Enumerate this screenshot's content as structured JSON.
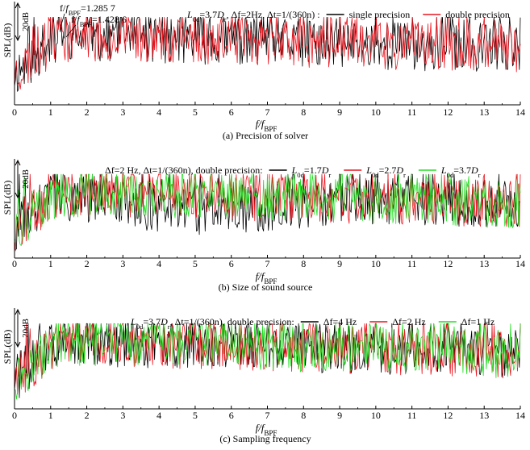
{
  "chart_data": [
    {
      "type": "line",
      "caption": "(a) Precision of solver",
      "xlabel": {
        "main": "f/f",
        "sub": "BPF"
      },
      "ylabel": "SPL(dB)",
      "scale_bar": "20dB",
      "xlim": [
        0,
        14
      ],
      "xticks": [
        "0",
        "1",
        "2",
        "3",
        "4",
        "5",
        "6",
        "7",
        "8",
        "9",
        "10",
        "11",
        "12",
        "13",
        "14"
      ],
      "legend": {
        "lead": "L0d=3.7Dr, Δf=2Hz, Δt=1/(360n) :",
        "entries": [
          {
            "name": "single precision",
            "color": "#000000"
          },
          {
            "name": "double precision",
            "color": "#e8141e"
          }
        ]
      },
      "annotations": [
        {
          "text": "f/fBPF=1.285 7",
          "x": 1.2857
        },
        {
          "text": "f/fBPF=1.428 6",
          "x": 1.4286
        }
      ],
      "series": [
        {
          "name": "single precision",
          "color": "#000000",
          "level_db": 0,
          "seed": 11,
          "order": 0
        },
        {
          "name": "double precision",
          "color": "#e8141e",
          "level_db": 0,
          "seed": 23,
          "order": 1
        }
      ]
    },
    {
      "type": "line",
      "caption": "(b) Size of sound source",
      "xlabel": {
        "main": "f/f",
        "sub": "BPF"
      },
      "ylabel": "SPL(dB)",
      "scale_bar": "20dB",
      "xlim": [
        0,
        14
      ],
      "xticks": [
        "0",
        "1",
        "2",
        "3",
        "4",
        "5",
        "6",
        "7",
        "8",
        "9",
        "10",
        "11",
        "12",
        "13",
        "14"
      ],
      "legend": {
        "lead": "Δf=2 Hz, Δt=1/(360n), double precision:",
        "entries": [
          {
            "name": "L0d=1.7Dr",
            "color": "#000000"
          },
          {
            "name": "L0d=2.7Dr",
            "color": "#e8141e"
          },
          {
            "name": "L0d=3.7Dr",
            "color": "#22dd22"
          }
        ]
      },
      "series": [
        {
          "name": "L0d=1.7Dr",
          "color": "#000000",
          "seed": 31,
          "order": 0
        },
        {
          "name": "L0d=2.7Dr",
          "color": "#e8141e",
          "seed": 47,
          "order": 1
        },
        {
          "name": "L0d=3.7Dr",
          "color": "#22dd22",
          "seed": 59,
          "order": 2
        }
      ]
    },
    {
      "type": "line",
      "caption": "(c) Sampling frequency",
      "xlabel": {
        "main": "f/f",
        "sub": "BPF"
      },
      "ylabel": "SPL(dB)",
      "scale_bar": "20dB",
      "xlim": [
        0,
        14
      ],
      "xticks": [
        "0",
        "1",
        "2",
        "3",
        "4",
        "5",
        "6",
        "7",
        "8",
        "9",
        "10",
        "11",
        "12",
        "13",
        "14"
      ],
      "legend": {
        "lead": "L0d=3.7Dr, Δt=1/(360n), double precision:",
        "entries": [
          {
            "name": "Δf=4 Hz",
            "color": "#000000"
          },
          {
            "name": "Δf=2 Hz",
            "color": "#e8141e"
          },
          {
            "name": "Δf=1 Hz",
            "color": "#22dd22"
          }
        ]
      },
      "series": [
        {
          "name": "Δf=4 Hz",
          "color": "#000000",
          "seed": 71,
          "order": 0
        },
        {
          "name": "Δf=2 Hz",
          "color": "#e8141e",
          "seed": 83,
          "order": 1
        },
        {
          "name": "Δf=1 Hz",
          "color": "#22dd22",
          "seed": 97,
          "order": 2
        }
      ]
    }
  ]
}
